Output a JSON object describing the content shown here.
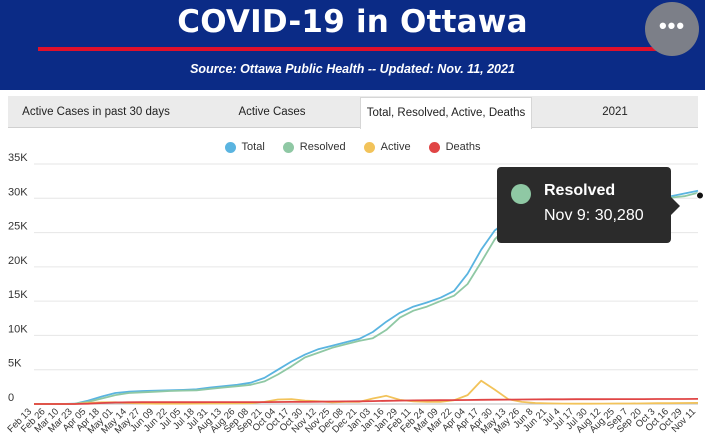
{
  "header": {
    "title": "COVID-19 in Ottawa",
    "subtitle": "Source:  Ottawa Public Health -- Updated:  Nov. 11, 2021",
    "menu_icon": "more-horizontal-icon",
    "menu_label": "•••",
    "background_color": "#0b2b86",
    "rule_color": "#e0102a"
  },
  "tabs": [
    {
      "label": "Active Cases in past 30 days",
      "active": false
    },
    {
      "label": "Active Cases",
      "active": false
    },
    {
      "label": "Total, Resolved, Active, Deaths",
      "active": true
    },
    {
      "label": "2021",
      "active": false
    }
  ],
  "tooltip": {
    "series": "Resolved",
    "value": "Nov 9: 30,280",
    "color": "#8fc8a4"
  },
  "chart_data": {
    "type": "line",
    "title": "",
    "xlabel": "",
    "ylabel": "",
    "ylim": [
      0,
      35000
    ],
    "yticks": [
      "0",
      "5K",
      "10K",
      "15K",
      "20K",
      "25K",
      "30K",
      "35K"
    ],
    "grid": true,
    "legend_position": "top-center",
    "categories": [
      "Feb 13",
      "Feb 26",
      "Mar 10",
      "Mar 23",
      "Apr 05",
      "Apr 18",
      "May 01",
      "May 14",
      "May 27",
      "Jun 09",
      "Jun 22",
      "Jul 05",
      "Jul 18",
      "Jul 31",
      "Aug 13",
      "Aug 26",
      "Sep 08",
      "Sep 21",
      "Oct 04",
      "Oct 17",
      "Oct 30",
      "Nov 12",
      "Nov 25",
      "Dec 08",
      "Dec 21",
      "Jan 03",
      "Jan 16",
      "Jan 29",
      "Feb 11",
      "Feb 24",
      "Mar 09",
      "Mar 22",
      "Apr 04",
      "Apr 17",
      "Apr 30",
      "May 13",
      "May 26",
      "Jun 8",
      "Jun 21",
      "Jul 4",
      "Jul 17",
      "Jul 30",
      "Aug 12",
      "Aug 25",
      "Sep 7",
      "Sep 20",
      "Oct 3",
      "Oct 16",
      "Oct 29",
      "Nov 11"
    ],
    "series": [
      {
        "name": "Total",
        "color": "#5ab4e0",
        "values": [
          0,
          0,
          0,
          50,
          500,
          1100,
          1600,
          1800,
          1900,
          1950,
          2000,
          2050,
          2150,
          2400,
          2600,
          2800,
          3100,
          3800,
          5000,
          6200,
          7200,
          8000,
          8500,
          9000,
          9500,
          10500,
          12000,
          13300,
          14200,
          14800,
          15500,
          16500,
          19000,
          22500,
          25300,
          26800,
          27600,
          28100,
          28500,
          28800,
          29000,
          29200,
          29400,
          29500,
          29700,
          29900,
          30100,
          30300,
          30700,
          31100
        ]
      },
      {
        "name": "Resolved",
        "color": "#8fc8a4",
        "values": [
          0,
          0,
          0,
          30,
          300,
          800,
          1300,
          1600,
          1700,
          1800,
          1900,
          1950,
          2000,
          2200,
          2400,
          2600,
          2800,
          3300,
          4300,
          5500,
          6800,
          7500,
          8200,
          8700,
          9200,
          9600,
          10800,
          12600,
          13600,
          14200,
          15000,
          15800,
          17500,
          20700,
          24000,
          26000,
          27200,
          27900,
          28300,
          28600,
          28900,
          29100,
          29300,
          29400,
          29600,
          29800,
          29950,
          30100,
          30300,
          30800
        ]
      },
      {
        "name": "Active",
        "color": "#f2c35a",
        "values": [
          0,
          0,
          0,
          10,
          150,
          250,
          250,
          150,
          80,
          50,
          40,
          40,
          60,
          70,
          80,
          90,
          120,
          300,
          650,
          700,
          500,
          400,
          250,
          300,
          300,
          800,
          1200,
          600,
          400,
          300,
          300,
          550,
          1300,
          3400,
          2100,
          700,
          300,
          150,
          90,
          60,
          50,
          50,
          60,
          70,
          80,
          90,
          110,
          120,
          150,
          160
        ]
      },
      {
        "name": "Deaths",
        "color": "#e04545",
        "values": [
          0,
          0,
          0,
          5,
          40,
          150,
          220,
          250,
          260,
          265,
          265,
          265,
          265,
          270,
          270,
          270,
          275,
          280,
          285,
          300,
          320,
          340,
          360,
          380,
          400,
          430,
          460,
          490,
          520,
          540,
          560,
          570,
          590,
          610,
          620,
          640,
          660,
          670,
          680,
          690,
          700,
          700,
          705,
          710,
          715,
          720,
          725,
          730,
          735,
          740
        ]
      }
    ]
  }
}
